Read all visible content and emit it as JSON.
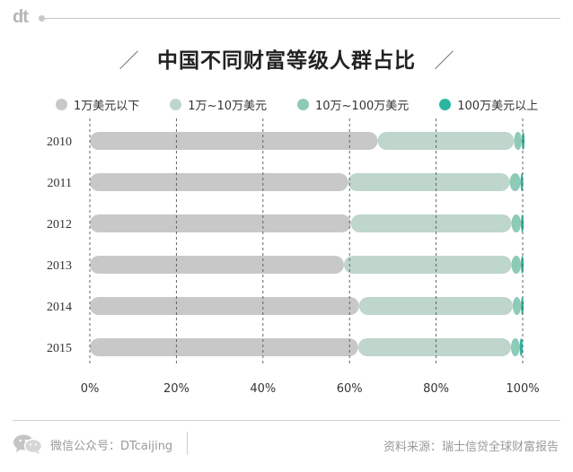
{
  "brand": {
    "logo_text": "dt"
  },
  "title": "中国不同财富等级人群占比",
  "title_slash": "／",
  "legend": [
    {
      "label": "1万美元以下",
      "color": "#c8c8c8"
    },
    {
      "label": "1万~10万美元",
      "color": "#bed6cb"
    },
    {
      "label": "10万~100万美元",
      "color": "#8ecbb6"
    },
    {
      "label": "100万美元以上",
      "color": "#2bb5a0"
    }
  ],
  "chart_data": {
    "type": "bar",
    "orientation": "horizontal",
    "stacked": true,
    "categories": [
      "2010",
      "2011",
      "2012",
      "2013",
      "2014",
      "2015"
    ],
    "series": [
      {
        "name": "1万美元以下",
        "values": [
          66.5,
          59.7,
          60.3,
          58.7,
          62.2,
          62.0
        ]
      },
      {
        "name": "1万~10万美元",
        "values": [
          31.5,
          37.3,
          37.1,
          38.7,
          35.5,
          35.3
        ]
      },
      {
        "name": "10万~100万美元",
        "values": [
          1.8,
          2.5,
          2.2,
          2.2,
          1.9,
          2.0
        ]
      },
      {
        "name": "100万美元以上",
        "values": [
          0.2,
          0.5,
          0.4,
          0.4,
          0.4,
          0.7
        ]
      }
    ],
    "x_ticks": [
      "0%",
      "20%",
      "40%",
      "60%",
      "80%",
      "100%"
    ],
    "xlim": [
      0,
      100
    ],
    "grid": true,
    "legend_position": "top"
  },
  "footer": {
    "wechat_label": "微信公众号：DTcaijing",
    "source": "资料来源：瑞士信贷全球财富报告"
  }
}
